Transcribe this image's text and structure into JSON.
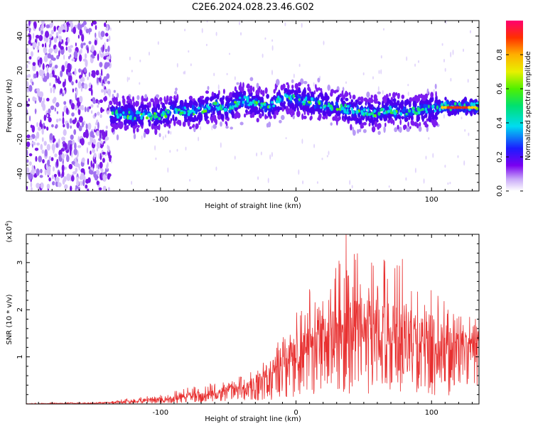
{
  "title": "C2E6.2024.028.23.46.G02",
  "chart_data": [
    {
      "type": "heatmap",
      "xlabel": "Height of straight line (km)",
      "ylabel": "Frequency (Hz)",
      "xlim": [
        -199,
        135
      ],
      "ylim": [
        -50,
        49
      ],
      "xticks": [
        -100,
        0,
        100
      ],
      "yticks": [
        -40,
        -20,
        0,
        20,
        40
      ],
      "colorbar": {
        "label": "Normalized spectral amplitude",
        "range": [
          0.0,
          1.0
        ],
        "ticks": [
          "0.0",
          "0.2",
          "0.4",
          "0.6",
          "0.8"
        ],
        "tick_values": [
          0.0,
          0.2,
          0.4,
          0.6,
          0.8
        ]
      },
      "noise_region_x": [
        -199,
        -137
      ],
      "ridge": {
        "x": [
          -137,
          -120,
          -100,
          -90,
          -75,
          -60,
          -50,
          -40,
          -30,
          -20,
          -10,
          0,
          10,
          20,
          30,
          40,
          50,
          60,
          70,
          80,
          90,
          100,
          110,
          120,
          135
        ],
        "freq": [
          -5,
          -6,
          -6,
          -3,
          -4,
          0,
          -2,
          3,
          1,
          -1,
          4,
          3,
          2,
          0,
          -1,
          -3,
          -4,
          -5,
          -3,
          -4,
          -3,
          -2,
          -1,
          -1,
          -1
        ]
      }
    },
    {
      "type": "line",
      "xlabel": "Height of straight line (km)",
      "ylabel": "SNR (10 * v/v)",
      "yscale_label": "(x10",
      "yscale_exp": "4",
      "yscale_close": ")",
      "color": "#e83030",
      "xlim": [
        -199,
        135
      ],
      "ylim": [
        0,
        3.6
      ],
      "xticks": [
        -100,
        0,
        100
      ],
      "yticks": [
        1,
        2,
        3
      ],
      "envelope": {
        "x": [
          -199,
          -140,
          -120,
          -100,
          -80,
          -60,
          -40,
          -20,
          0,
          20,
          40,
          60,
          80,
          100,
          120,
          135
        ],
        "mean": [
          0.0,
          0.02,
          0.05,
          0.09,
          0.15,
          0.22,
          0.32,
          0.55,
          0.95,
          1.2,
          1.3,
          1.35,
          1.3,
          1.25,
          1.2,
          1.3
        ],
        "peak": [
          0.02,
          0.04,
          0.14,
          0.2,
          0.35,
          0.45,
          0.6,
          1.0,
          2.0,
          2.9,
          3.2,
          3.25,
          3.1,
          2.6,
          1.9,
          1.8
        ]
      },
      "max_point": {
        "x": 37,
        "y": 3.6
      }
    }
  ]
}
